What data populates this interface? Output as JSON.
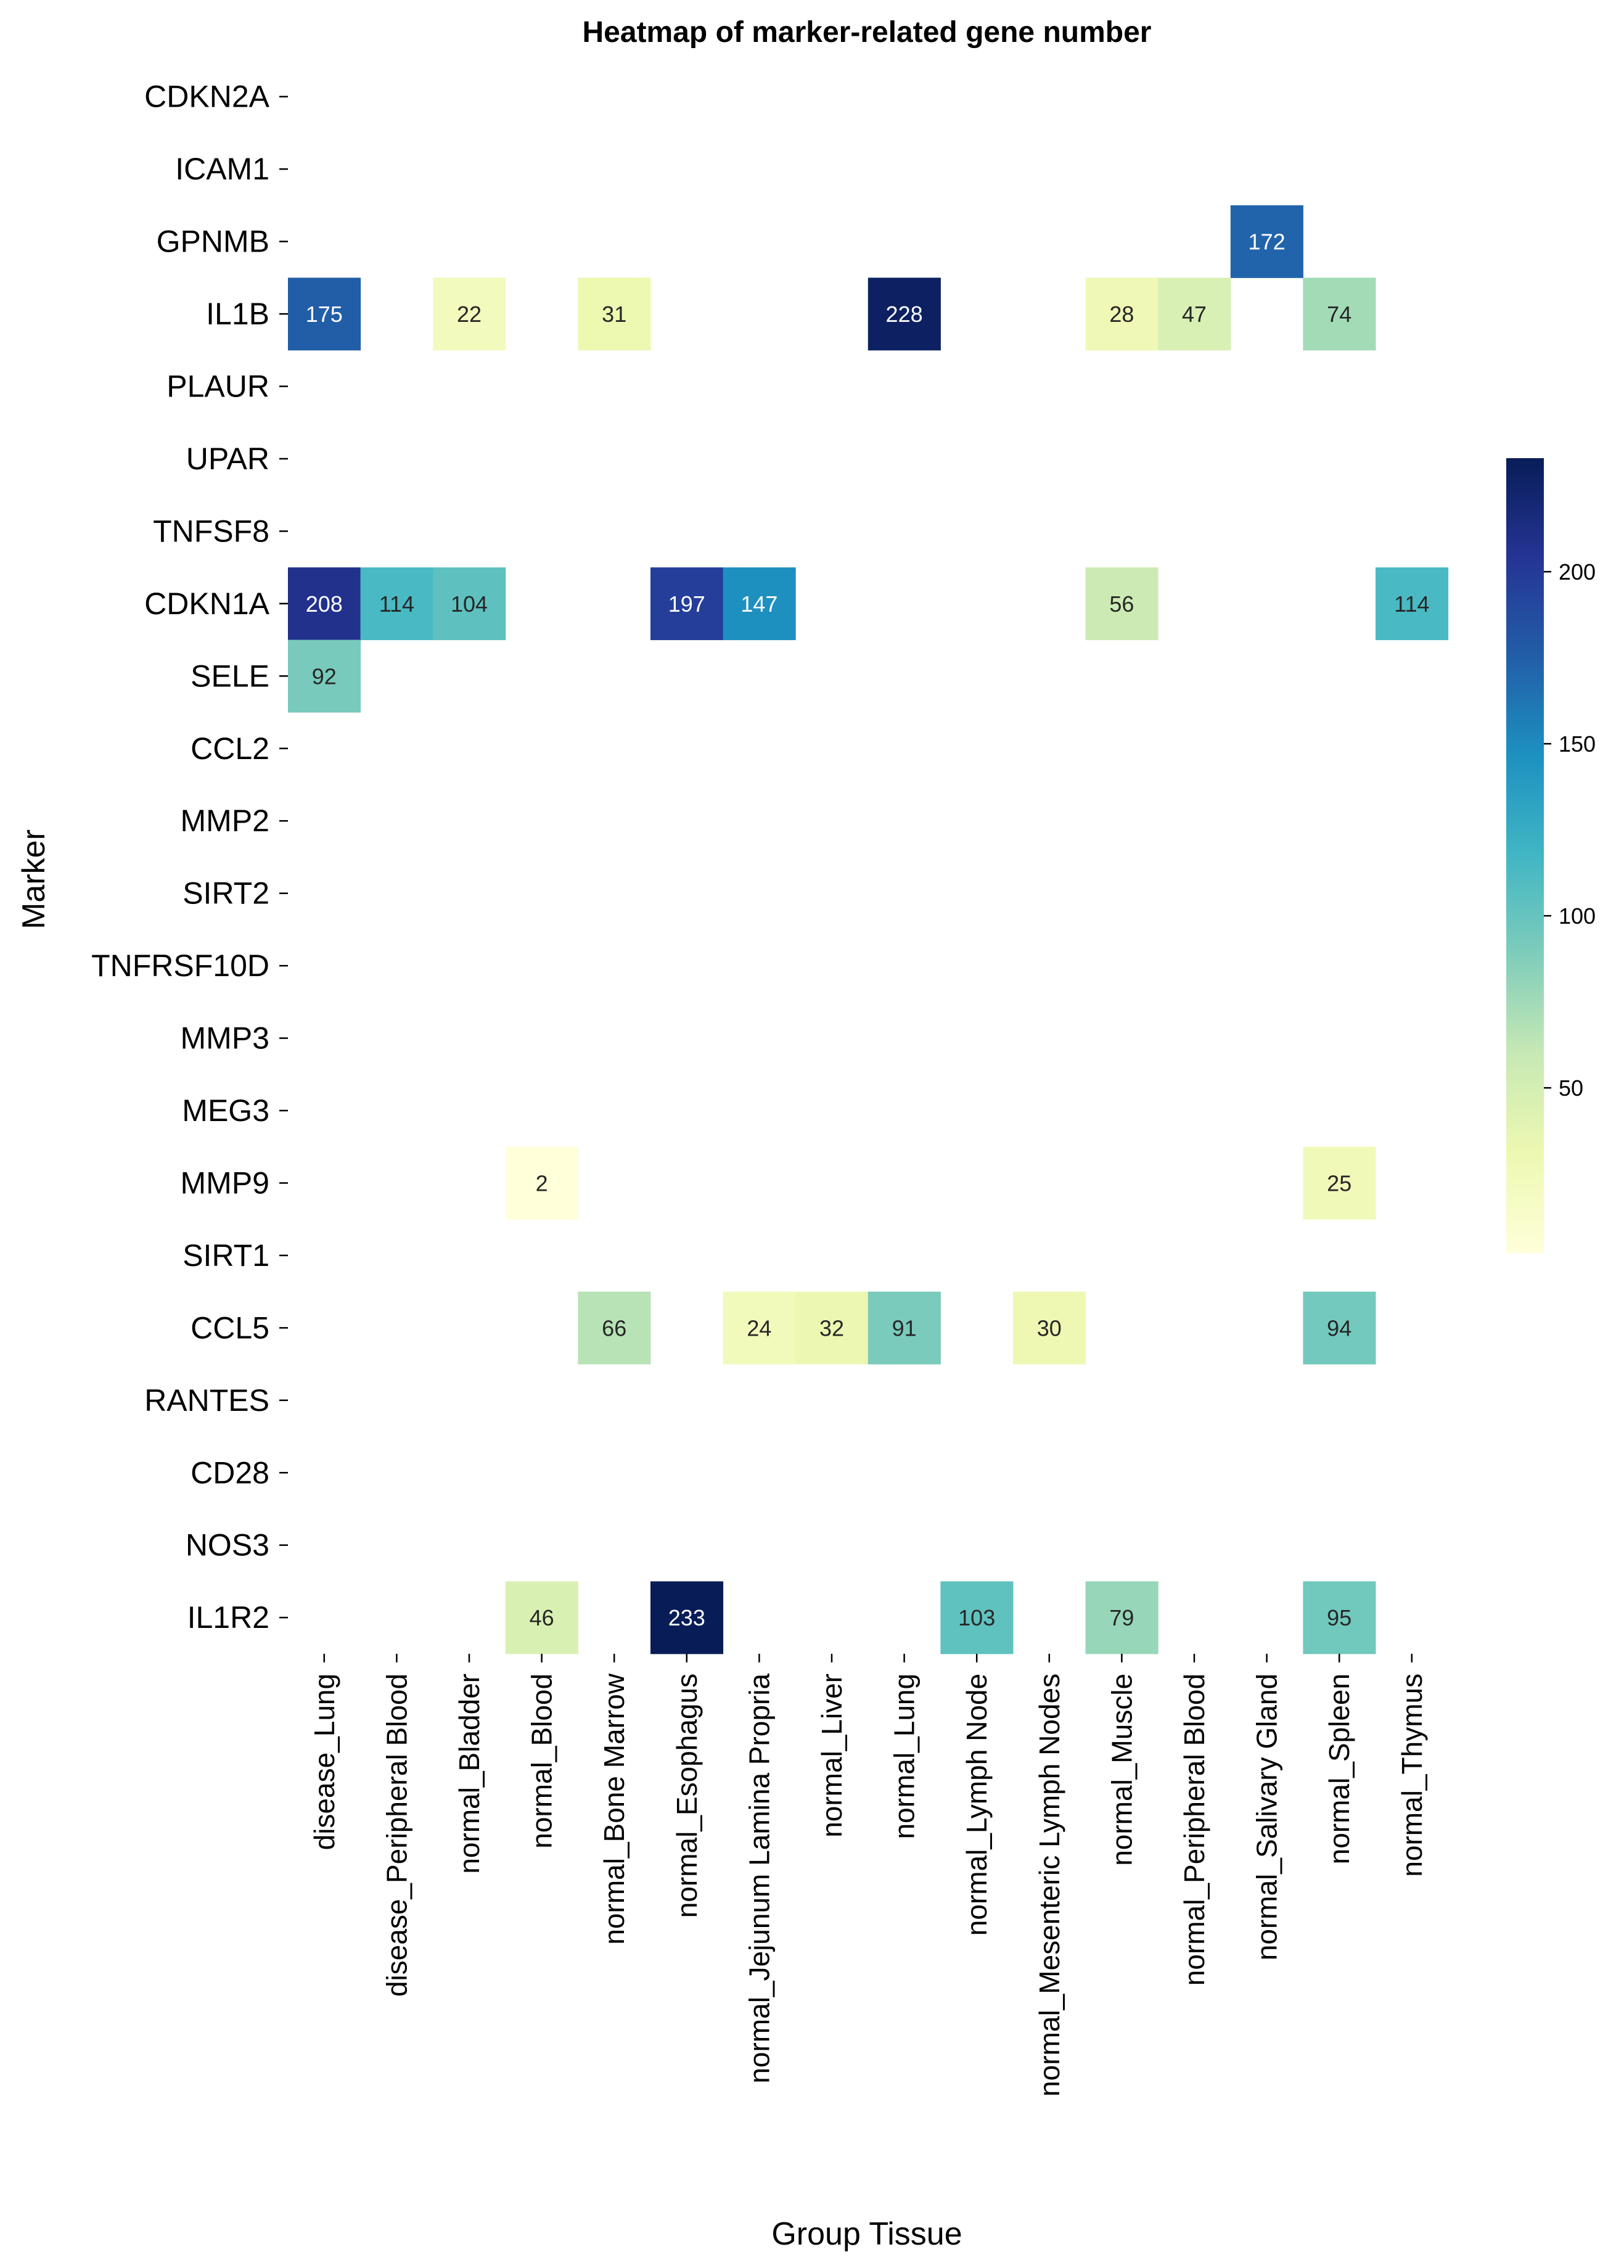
{
  "chart_data": {
    "type": "heatmap",
    "title": "Heatmap of marker-related gene number",
    "xlabel": "Group Tissue",
    "ylabel": "Marker",
    "rows": [
      "CDKN2A",
      "ICAM1",
      "GPNMB",
      "IL1B",
      "PLAUR",
      "UPAR",
      "TNFSF8",
      "CDKN1A",
      "SELE",
      "CCL2",
      "MMP2",
      "SIRT2",
      "TNFRSF10D",
      "MMP3",
      "MEG3",
      "MMP9",
      "SIRT1",
      "CCL5",
      "RANTES",
      "CD28",
      "NOS3",
      "IL1R2"
    ],
    "columns": [
      "disease_Lung",
      "disease_Peripheral Blood",
      "normal_Bladder",
      "normal_Blood",
      "normal_Bone Marrow",
      "normal_Esophagus",
      "normal_Jejunum Lamina Propria",
      "normal_Liver",
      "normal_Lung",
      "normal_Lymph Node",
      "normal_Mesenteric Lymph Nodes",
      "normal_Muscle",
      "normal_Peripheral Blood",
      "normal_Salivary Gland",
      "normal_Spleen",
      "normal_Thymus"
    ],
    "cells": [
      {
        "row": "GPNMB",
        "col": "normal_Salivary Gland",
        "value": 172
      },
      {
        "row": "IL1B",
        "col": "disease_Lung",
        "value": 175
      },
      {
        "row": "IL1B",
        "col": "normal_Bladder",
        "value": 22
      },
      {
        "row": "IL1B",
        "col": "normal_Bone Marrow",
        "value": 31
      },
      {
        "row": "IL1B",
        "col": "normal_Lung",
        "value": 228
      },
      {
        "row": "IL1B",
        "col": "normal_Muscle",
        "value": 28
      },
      {
        "row": "IL1B",
        "col": "normal_Peripheral Blood",
        "value": 47
      },
      {
        "row": "IL1B",
        "col": "normal_Spleen",
        "value": 74
      },
      {
        "row": "CDKN1A",
        "col": "disease_Lung",
        "value": 208
      },
      {
        "row": "CDKN1A",
        "col": "disease_Peripheral Blood",
        "value": 114
      },
      {
        "row": "CDKN1A",
        "col": "normal_Bladder",
        "value": 104
      },
      {
        "row": "CDKN1A",
        "col": "normal_Esophagus",
        "value": 197
      },
      {
        "row": "CDKN1A",
        "col": "normal_Jejunum Lamina Propria",
        "value": 147
      },
      {
        "row": "CDKN1A",
        "col": "normal_Muscle",
        "value": 56
      },
      {
        "row": "CDKN1A",
        "col": "normal_Thymus",
        "value": 114
      },
      {
        "row": "SELE",
        "col": "disease_Lung",
        "value": 92
      },
      {
        "row": "MMP9",
        "col": "normal_Blood",
        "value": 2
      },
      {
        "row": "MMP9",
        "col": "normal_Spleen",
        "value": 25
      },
      {
        "row": "CCL5",
        "col": "normal_Bone Marrow",
        "value": 66
      },
      {
        "row": "CCL5",
        "col": "normal_Jejunum Lamina Propria",
        "value": 24
      },
      {
        "row": "CCL5",
        "col": "normal_Liver",
        "value": 32
      },
      {
        "row": "CCL5",
        "col": "normal_Lung",
        "value": 91
      },
      {
        "row": "CCL5",
        "col": "normal_Mesenteric Lymph Nodes",
        "value": 30
      },
      {
        "row": "CCL5",
        "col": "normal_Spleen",
        "value": 94
      },
      {
        "row": "IL1R2",
        "col": "normal_Blood",
        "value": 46
      },
      {
        "row": "IL1R2",
        "col": "normal_Esophagus",
        "value": 233
      },
      {
        "row": "IL1R2",
        "col": "normal_Lymph Node",
        "value": 103
      },
      {
        "row": "IL1R2",
        "col": "normal_Muscle",
        "value": 79
      },
      {
        "row": "IL1R2",
        "col": "normal_Spleen",
        "value": 95
      }
    ],
    "colorbar": {
      "colormap": "YlGnBu",
      "range": [
        2,
        233
      ],
      "ticks": [
        50,
        100,
        150,
        200
      ]
    }
  }
}
